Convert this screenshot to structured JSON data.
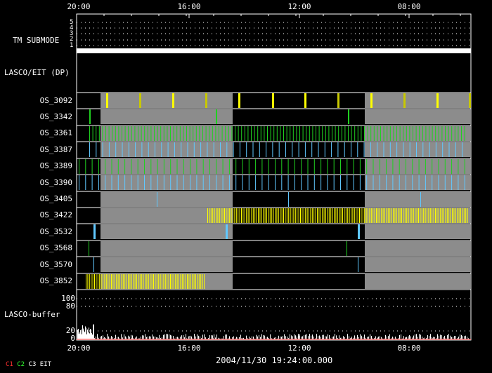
{
  "top_axis": {
    "ticks": [
      "20:00",
      "16:00",
      "12:00",
      "08:00"
    ]
  },
  "bottom_axis": {
    "ticks": [
      "20:00",
      "16:00",
      "12:00",
      "08:00"
    ]
  },
  "tm_submode": {
    "label": "TM SUBMODE",
    "levels": [
      "5",
      "4",
      "3",
      "2",
      "1"
    ]
  },
  "lasco_eit_label": "LASCO/EIT (DP)",
  "rows": [
    {
      "label": "OS_3092"
    },
    {
      "label": "OS_3342"
    },
    {
      "label": "OS_3361"
    },
    {
      "label": "OS_3387"
    },
    {
      "label": "OS_3389"
    },
    {
      "label": "OS_3390"
    },
    {
      "label": "OS_3405"
    },
    {
      "label": "OS_3422"
    },
    {
      "label": "OS_3532"
    },
    {
      "label": "OS_3568"
    },
    {
      "label": "OS_3570"
    },
    {
      "label": "OS_3852"
    }
  ],
  "buffer": {
    "label": "LASCO-buffer",
    "ticks": [
      "100",
      "80",
      "20",
      "0"
    ]
  },
  "timestamp": "2004/11/30 19:24:00.000",
  "legend": [
    {
      "label": "C1",
      "color": "#ff3030"
    },
    {
      "label": "C2",
      "color": "#30ff30"
    },
    {
      "label": "C3",
      "color": "#ffffff"
    },
    {
      "label": "EIT",
      "color": "#ffffff"
    }
  ],
  "colors": {
    "yellow": "#ffff00",
    "olive": "#c8c800",
    "green": "#20d020",
    "cyan": "#60c8ff",
    "gray": "#8c8c8c"
  }
}
